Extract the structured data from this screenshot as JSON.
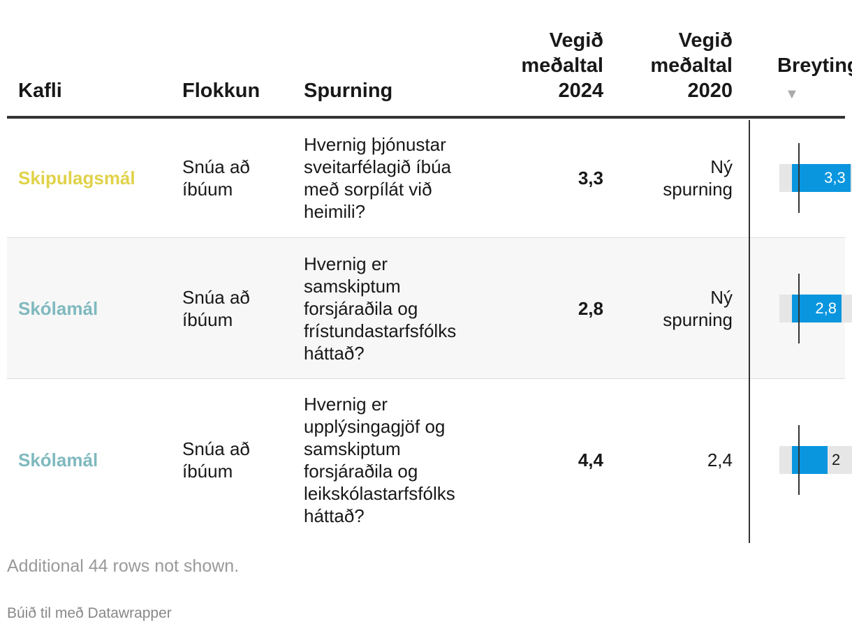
{
  "columns": {
    "kafli": "Kafli",
    "flokkun": "Flokkun",
    "spurning": "Spurning",
    "v2024": [
      "Vegið",
      "meðaltal",
      "2024"
    ],
    "v2020": [
      "Vegið",
      "meðaltal",
      "2020"
    ],
    "breyting": "Breyting",
    "sort_glyph": "▼"
  },
  "colors": {
    "skipulagsmal": "#e0d24a",
    "skolamal": "#7fb9bf",
    "bar": "#0a96df",
    "bar_bg": "#e6e6e6"
  },
  "chart_data": {
    "type": "table",
    "columns": [
      "Kafli",
      "Flokkun",
      "Spurning",
      "Vegið meðaltal 2024",
      "Vegið meðaltal 2020",
      "Breyting"
    ],
    "rows": [
      {
        "kafli": "Skipulagsmál",
        "kafli_color": "#e0d24a",
        "flokkun": [
          "Snúa að",
          "íbúum"
        ],
        "spurning": [
          "Hvernig þjónustar",
          "sveitarfélagið íbúa",
          "með sorpílát við",
          "heimili?"
        ],
        "v2024": "3,3",
        "v2020": [
          "Ný",
          "spurning"
        ],
        "breyting": 3.3,
        "breyting_label": "3,3"
      },
      {
        "kafli": "Skólamál",
        "kafli_color": "#7fb9bf",
        "flokkun": [
          "Snúa að",
          "íbúum"
        ],
        "spurning": [
          "Hvernig er",
          "samskiptum",
          "forsjáraðila og",
          "frístundastarfsfólks",
          "háttað?"
        ],
        "v2024": "2,8",
        "v2020": [
          "Ný",
          "spurning"
        ],
        "breyting": 2.8,
        "breyting_label": "2,8"
      },
      {
        "kafli": "Skólamál",
        "kafli_color": "#7fb9bf",
        "flokkun": [
          "Snúa að",
          "íbúum"
        ],
        "spurning": [
          "Hvernig er",
          "upplýsingagjöf og",
          "samskiptum",
          "forsjáraðila og",
          "leikskólastarfsfólks",
          "háttað?"
        ],
        "v2024": "4,4",
        "v2020": [
          "2,4"
        ],
        "breyting": 2.0,
        "breyting_label": "2"
      }
    ]
  },
  "footer": {
    "note": "Additional 44 rows not shown.",
    "credit": "Búið til með Datawrapper"
  }
}
